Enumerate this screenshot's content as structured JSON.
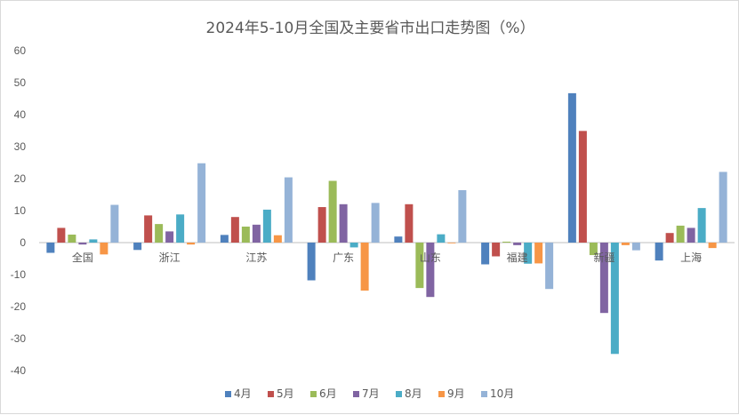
{
  "chart_data": {
    "type": "bar",
    "title": "2024年5-10月全国及主要省市出口走势图（%）",
    "categories": [
      "全国",
      "浙江",
      "江苏",
      "广东",
      "山东",
      "福建",
      "新疆",
      "上海"
    ],
    "ylim": [
      -40,
      60
    ],
    "yticks": [
      60,
      50,
      40,
      30,
      20,
      10,
      0,
      -10,
      -20,
      -30,
      -40
    ],
    "grid": false,
    "legend_position": "bottom",
    "series": [
      {
        "name": "4月",
        "color": "#4f81bd",
        "values": [
          -3.2,
          -2.3,
          2.4,
          -11.8,
          1.9,
          -6.8,
          46.7,
          -5.6
        ]
      },
      {
        "name": "5月",
        "color": "#c0504d",
        "values": [
          4.6,
          8.5,
          8.0,
          11.1,
          12.0,
          -4.3,
          34.9,
          3.0
        ]
      },
      {
        "name": "6月",
        "color": "#9bbb59",
        "values": [
          2.5,
          5.8,
          5.0,
          19.3,
          -14.2,
          0.3,
          -3.9,
          5.3
        ]
      },
      {
        "name": "7月",
        "color": "#8064a2",
        "values": [
          -0.6,
          3.5,
          5.6,
          12.0,
          -17.0,
          -0.8,
          -22.0,
          4.6
        ]
      },
      {
        "name": "8月",
        "color": "#4bacc6",
        "values": [
          1.0,
          8.8,
          10.3,
          -1.5,
          2.6,
          -6.6,
          -34.8,
          10.8
        ]
      },
      {
        "name": "9月",
        "color": "#f79646",
        "values": [
          -3.7,
          -0.6,
          2.3,
          -15.0,
          -0.1,
          -6.5,
          -0.8,
          -1.7
        ]
      },
      {
        "name": "10月",
        "color": "#95b3d7",
        "values": [
          11.8,
          24.8,
          20.4,
          12.4,
          16.4,
          -14.5,
          -2.4,
          22.1
        ]
      }
    ]
  }
}
